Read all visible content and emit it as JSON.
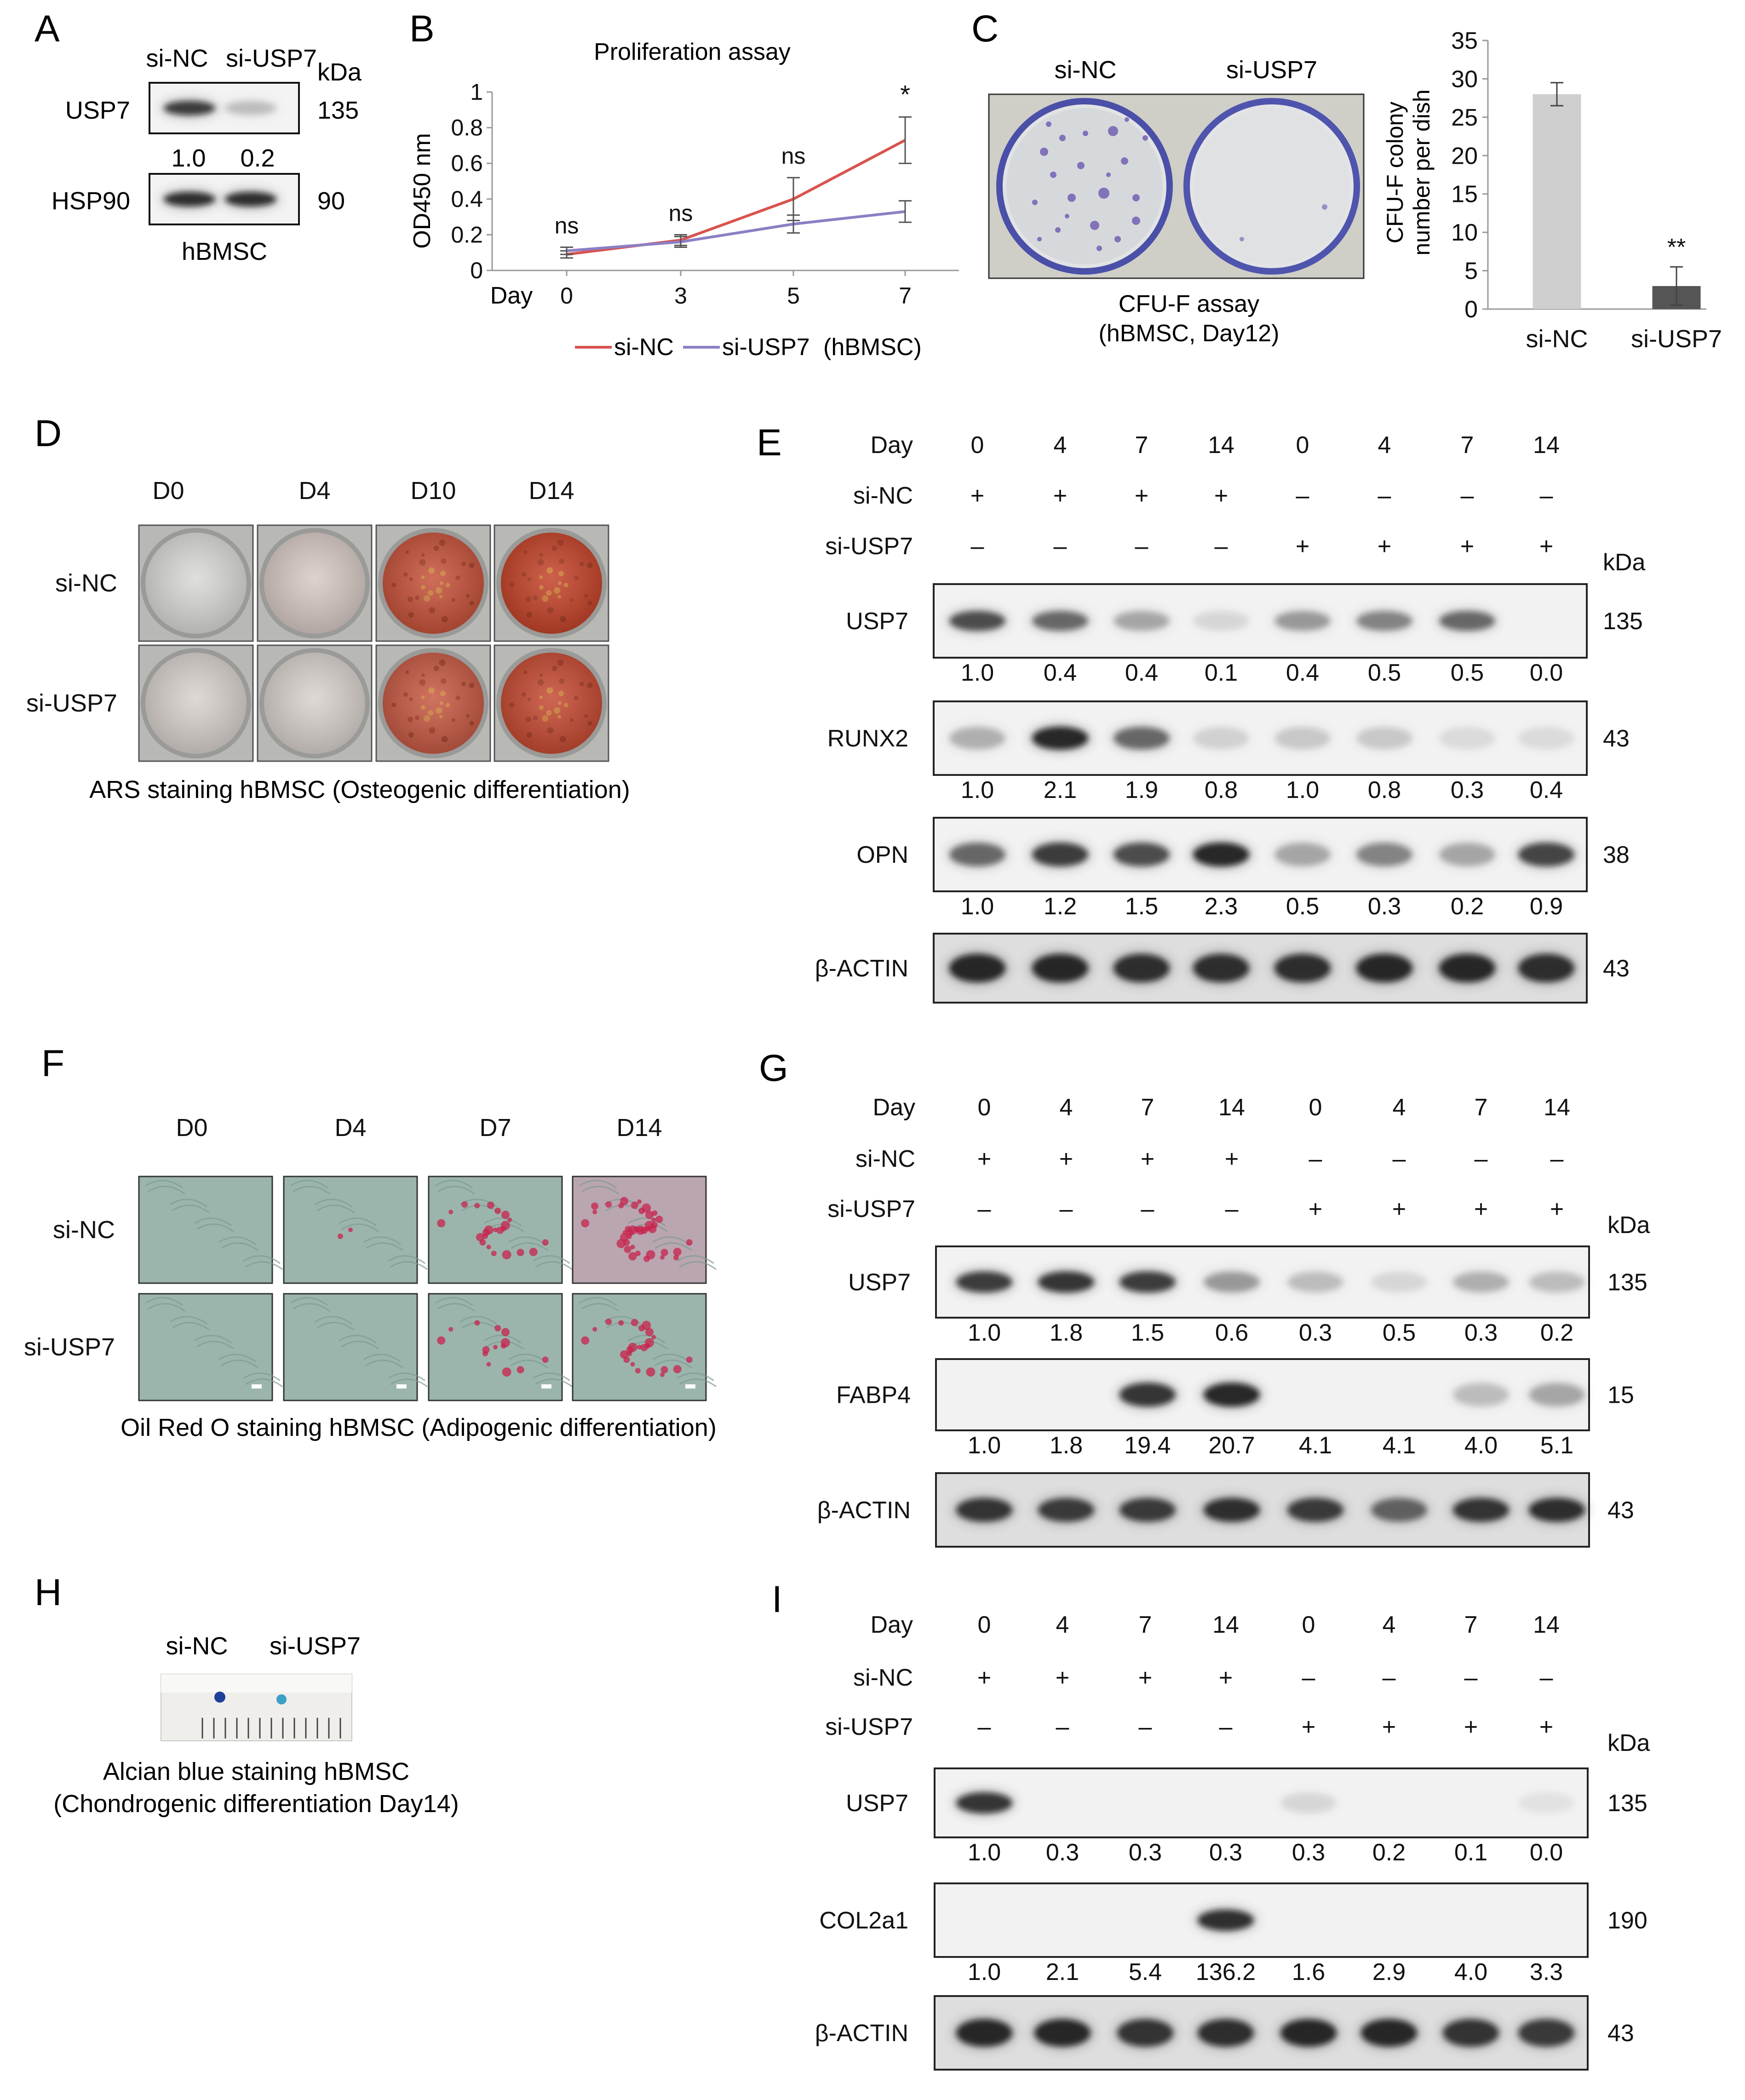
{
  "panels": {
    "A": {
      "letter": "A",
      "col_labels": [
        "si-NC",
        "si-USP7"
      ],
      "kda_label": "kDa",
      "rows": [
        {
          "protein": "USP7",
          "kda": "135",
          "quant": [
            "1.0",
            "0.2"
          ],
          "bands": [
            0.85,
            0.2
          ]
        },
        {
          "protein": "HSP90",
          "kda": "90",
          "quant": [],
          "bands": [
            0.95,
            0.95
          ]
        }
      ],
      "caption": "hBMSC"
    },
    "B": {
      "letter": "B",
      "legend": [
        {
          "name": "si-NC",
          "color": "#d9534f"
        },
        {
          "name": "si-USP7",
          "color": "#8b7fc4"
        },
        {
          "name": "(hBMSC)",
          "color": ""
        }
      ],
      "chart_data": {
        "type": "line",
        "title": "Proliferation assay",
        "xlabel": "Day",
        "ylabel": "OD450 nm",
        "x": [
          0,
          3,
          5,
          7
        ],
        "ylim": [
          0,
          1
        ],
        "yticks": [
          "0",
          "0.2",
          "0.4",
          "0.6",
          "0.8",
          "1"
        ],
        "series": [
          {
            "name": "si-NC",
            "color": "#d9534f",
            "values": [
              0.09,
              0.17,
              0.4,
              0.73
            ],
            "errors": [
              0.02,
              0.03,
              0.12,
              0.13
            ]
          },
          {
            "name": "si-USP7",
            "color": "#8b7fc4",
            "values": [
              0.11,
              0.16,
              0.26,
              0.33
            ],
            "errors": [
              0.02,
              0.03,
              0.05,
              0.06
            ]
          }
        ],
        "annotations": [
          "ns",
          "ns",
          "ns",
          "*"
        ]
      }
    },
    "C": {
      "letter": "C",
      "dish_labels": [
        "si-NC",
        "si-USP7"
      ],
      "caption_line1": "CFU-F assay",
      "caption_line2": "(hBMSC, Day12)",
      "chart_data": {
        "type": "bar",
        "categories": [
          "si-NC",
          "si-USP7"
        ],
        "values": [
          28,
          3
        ],
        "errors": [
          1.5,
          2.5
        ],
        "colors": [
          "#cfcfcf",
          "#555555"
        ],
        "ylabel": "CFU-F colony number per dish",
        "ylabel_lines": [
          "CFU-F colony",
          "number per dish"
        ],
        "ylim": [
          0,
          35
        ],
        "yticks": [
          "0",
          "5",
          "10",
          "15",
          "20",
          "25",
          "30",
          "35"
        ],
        "annotations": [
          "",
          "**"
        ]
      }
    },
    "D": {
      "letter": "D",
      "col_labels": [
        "D0",
        "D4",
        "D10",
        "D14"
      ],
      "row_labels": [
        "si-NC",
        "si-USP7"
      ],
      "caption": "ARS staining hBMSC (Osteogenic differentiation)",
      "stain_levels": [
        [
          0.0,
          0.1,
          0.9,
          1.0
        ],
        [
          0.05,
          0.05,
          0.85,
          0.95
        ]
      ],
      "colors": {
        "unstained": "#d9d9d6",
        "stained": "#c4442a",
        "dark": "#8a2d15"
      }
    },
    "E": {
      "letter": "E",
      "header": {
        "day_label": "Day",
        "days": [
          "0",
          "4",
          "7",
          "14",
          "0",
          "4",
          "7",
          "14"
        ],
        "nc_label": "si-NC",
        "nc": [
          "+",
          "+",
          "+",
          "+",
          "–",
          "–",
          "–",
          "–"
        ],
        "usp_label": "si-USP7",
        "usp": [
          "–",
          "–",
          "–",
          "–",
          "+",
          "+",
          "+",
          "+"
        ],
        "kda_label": "kDa"
      },
      "blots": [
        {
          "protein": "USP7",
          "kda": "135",
          "quant": [
            "1.0",
            "0.4",
            "0.4",
            "0.1",
            "0.4",
            "0.5",
            "0.5",
            "0.0"
          ],
          "bands": [
            0.75,
            0.6,
            0.3,
            0.1,
            0.35,
            0.45,
            0.6,
            0.0
          ]
        },
        {
          "protein": "RUNX2",
          "kda": "43",
          "quant": [
            "1.0",
            "2.1",
            "1.9",
            "0.8",
            "1.0",
            "0.8",
            "0.3",
            "0.4"
          ],
          "bands": [
            0.25,
            1.0,
            0.6,
            0.12,
            0.15,
            0.15,
            0.08,
            0.08
          ]
        },
        {
          "protein": "OPN",
          "kda": "38",
          "quant": [
            "1.0",
            "1.2",
            "1.5",
            "2.3",
            "0.5",
            "0.3",
            "0.2",
            "0.9"
          ],
          "bands": [
            0.6,
            0.85,
            0.75,
            1.0,
            0.3,
            0.45,
            0.3,
            0.8
          ]
        },
        {
          "protein": "β-ACTIN",
          "kda": "43",
          "quant": [],
          "bands": [
            1.0,
            1.0,
            0.95,
            0.95,
            0.95,
            1.0,
            1.0,
            0.95
          ]
        }
      ]
    },
    "F": {
      "letter": "F",
      "col_labels": [
        "D0",
        "D4",
        "D7",
        "D14"
      ],
      "row_labels": [
        "si-NC",
        "si-USP7"
      ],
      "caption": "Oil Red O staining hBMSC (Adipogenic differentiation)",
      "stain_levels": [
        [
          0.0,
          0.05,
          0.5,
          0.9
        ],
        [
          0.0,
          0.0,
          0.3,
          0.55
        ]
      ],
      "colors": {
        "background": "#9bb5ad",
        "stain": "#c8234e"
      }
    },
    "G": {
      "letter": "G",
      "header": {
        "day_label": "Day",
        "days": [
          "0",
          "4",
          "7",
          "14",
          "0",
          "4",
          "7",
          "14"
        ],
        "nc_label": "si-NC",
        "nc": [
          "+",
          "+",
          "+",
          "+",
          "–",
          "–",
          "–",
          "–"
        ],
        "usp_label": "si-USP7",
        "usp": [
          "–",
          "–",
          "–",
          "–",
          "+",
          "+",
          "+",
          "+"
        ],
        "kda_label": "kDa"
      },
      "blots": [
        {
          "protein": "USP7",
          "kda": "135",
          "quant": [
            "1.0",
            "1.8",
            "1.5",
            "0.6",
            "0.3",
            "0.5",
            "0.3",
            "0.2"
          ],
          "bands": [
            0.85,
            0.9,
            0.85,
            0.35,
            0.2,
            0.1,
            0.25,
            0.2
          ]
        },
        {
          "protein": "FABP4",
          "kda": "15",
          "quant": [
            "1.0",
            "1.8",
            "19.4",
            "20.7",
            "4.1",
            "4.1",
            "4.0",
            "5.1"
          ],
          "bands": [
            0.0,
            0.0,
            0.9,
            1.0,
            0.0,
            0.0,
            0.2,
            0.3
          ]
        },
        {
          "protein": "β-ACTIN",
          "kda": "43",
          "quant": [],
          "bands": [
            0.9,
            0.85,
            0.85,
            0.95,
            0.85,
            0.6,
            0.9,
            0.95
          ]
        }
      ]
    },
    "H": {
      "letter": "H",
      "labels": [
        "si-NC",
        "si-USP7"
      ],
      "caption_line1": "Alcian blue staining hBMSC",
      "caption_line2": "(Chondrogenic differentiation Day14)",
      "colors": {
        "dot1": "#1f3f9a",
        "dot2": "#3aa0c8"
      }
    },
    "I": {
      "letter": "I",
      "header": {
        "day_label": "Day",
        "days": [
          "0",
          "4",
          "7",
          "14",
          "0",
          "4",
          "7",
          "14"
        ],
        "nc_label": "si-NC",
        "nc": [
          "+",
          "+",
          "+",
          "+",
          "–",
          "–",
          "–",
          "–"
        ],
        "usp_label": "si-USP7",
        "usp": [
          "–",
          "–",
          "–",
          "–",
          "+",
          "+",
          "+",
          "+"
        ],
        "kda_label": "kDa"
      },
      "blots": [
        {
          "protein": "USP7",
          "kda": "135",
          "quant": [
            "1.0",
            "0.3",
            "0.3",
            "0.3",
            "0.3",
            "0.2",
            "0.1",
            "0.0"
          ],
          "bands": [
            0.9,
            0.0,
            0.0,
            0.0,
            0.1,
            0.0,
            0.0,
            0.05
          ]
        },
        {
          "protein": "COL2a1",
          "kda": "190",
          "quant": [
            "1.0",
            "2.1",
            "5.4",
            "136.2",
            "1.6",
            "2.9",
            "4.0",
            "3.3"
          ],
          "bands": [
            0.0,
            0.0,
            0.0,
            0.95,
            0.0,
            0.0,
            0.0,
            0.0
          ]
        },
        {
          "protein": "β-ACTIN",
          "kda": "43",
          "quant": [],
          "bands": [
            1.0,
            1.0,
            0.9,
            0.95,
            1.0,
            1.0,
            0.9,
            0.85
          ]
        }
      ]
    }
  }
}
